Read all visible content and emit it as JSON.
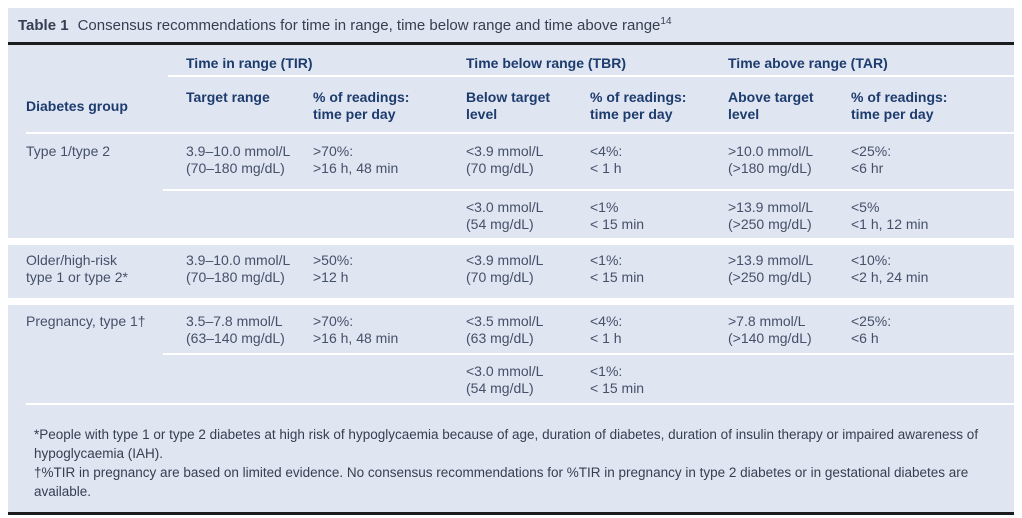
{
  "colors": {
    "table_background": "#dfe5f1",
    "header_text": "#1d3c6e",
    "body_text": "#455069",
    "dark_rule": "#1b1c20",
    "separator": "#ffffff"
  },
  "caption": {
    "label": "Table 1",
    "text": "Consensus recommendations for time in range, time below range and time above range",
    "reference": "14"
  },
  "header": {
    "groups": {
      "tir": "Time in range (TIR)",
      "tbr": "Time below range (TBR)",
      "tar": "Time above range (TAR)"
    },
    "columns": {
      "diabetes_group": "Diabetes group",
      "target_range": "Target range",
      "tir_readings": "% of readings:\ntime per day",
      "tbr_level": "Below target\nlevel",
      "tbr_readings": "% of readings:\ntime per day",
      "tar_level": "Above target\nlevel",
      "tar_readings": "% of readings:\ntime per day"
    }
  },
  "rows": [
    {
      "group": "Type 1/type 2",
      "target_range": "3.9–10.0 mmol/L\n(70–180 mg/dL)",
      "tir_pct": ">70%:\n>16 h, 48 min",
      "sub": [
        {
          "tbr_level": "<3.9 mmol/L\n(70 mg/dL)",
          "tbr_pct": "<4%:\n< 1 h",
          "tar_level": ">10.0 mmol/L\n(>180 mg/dL)",
          "tar_pct": "<25%:\n<6 hr"
        },
        {
          "tbr_level": "<3.0 mmol/L\n(54 mg/dL)",
          "tbr_pct": "<1%\n< 15 min",
          "tar_level": ">13.9 mmol/L\n(>250 mg/dL)",
          "tar_pct": "<5%\n<1 h, 12 min"
        }
      ]
    },
    {
      "group": "Older/high-risk\ntype 1 or type 2*",
      "target_range": "3.9–10.0 mmol/L\n(70–180 mg/dL)",
      "tir_pct": ">50%:\n>12 h",
      "sub": [
        {
          "tbr_level": "<3.9 mmol/L\n(70 mg/dL)",
          "tbr_pct": "<1%:\n< 15 min",
          "tar_level": ">13.9 mmol/L\n(>250 mg/dL)",
          "tar_pct": "<10%:\n<2 h, 24 min"
        }
      ]
    },
    {
      "group": "Pregnancy, type 1†",
      "target_range": "3.5–7.8 mmol/L\n(63–140 mg/dL)",
      "tir_pct": ">70%:\n>16 h, 48 min",
      "sub": [
        {
          "tbr_level": "<3.5 mmol/L\n(63 mg/dL)",
          "tbr_pct": "<4%:\n< 1 h",
          "tar_level": ">7.8 mmol/L\n(>140 mg/dL)",
          "tar_pct": "<25%:\n<6 h"
        },
        {
          "tbr_level": "<3.0 mmol/L\n(54 mg/dL)",
          "tbr_pct": "<1%:\n< 15 min",
          "tar_level": "",
          "tar_pct": ""
        }
      ]
    }
  ],
  "footnotes": [
    "*People with type 1 or type 2 diabetes at high risk of hypoglycaemia because of age, duration of diabetes, duration of insulin therapy or impaired awareness of hypoglycaemia (IAH).",
    "†%TIR in pregnancy are based on limited evidence. No consensus recommendations for %TIR in pregnancy in type 2 diabetes or in gestational diabetes are available."
  ]
}
